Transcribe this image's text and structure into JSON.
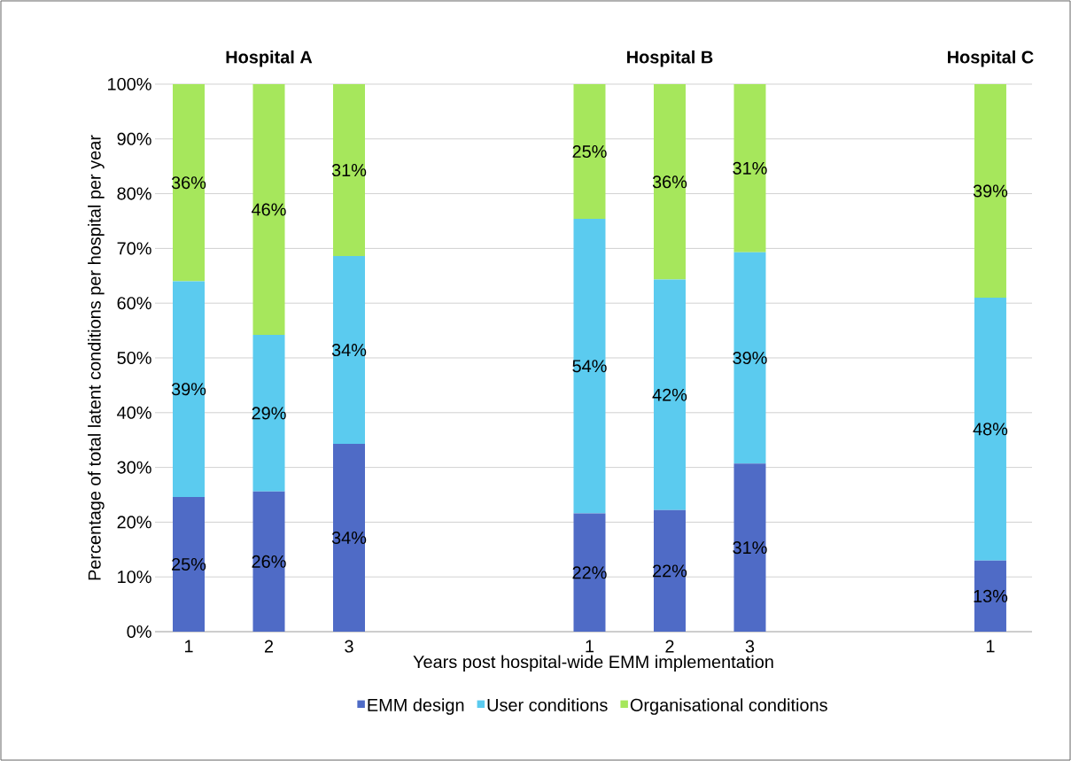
{
  "chart_data": {
    "type": "bar",
    "stacked": true,
    "xlabel": "Years post hospital-wide EMM implementation",
    "ylabel": "Percentage of total latent conditions per hospital per year",
    "categories": [
      "1",
      "2",
      "3",
      null,
      null,
      "1",
      "2",
      "3",
      null,
      null,
      "1"
    ],
    "series": [
      {
        "name": "EMM design",
        "color": "#4f6bc6",
        "values": [
          24.6,
          25.6,
          34.3,
          null,
          null,
          21.6,
          22.2,
          30.7,
          null,
          null,
          13.0
        ],
        "value_labels": [
          "25%",
          "26%",
          "34%",
          null,
          null,
          "22%",
          "22%",
          "31%",
          null,
          null,
          "13%"
        ]
      },
      {
        "name": "User conditions",
        "color": "#5bcbef",
        "values": [
          39.4,
          28.6,
          34.3,
          null,
          null,
          53.8,
          42.1,
          38.6,
          null,
          null,
          48.0
        ],
        "value_labels": [
          "39%",
          "29%",
          "34%",
          null,
          null,
          "54%",
          "42%",
          "39%",
          null,
          null,
          "48%"
        ]
      },
      {
        "name": "Organisational conditions",
        "color": "#a6e75c",
        "values": [
          36.0,
          45.8,
          31.4,
          null,
          null,
          24.6,
          35.7,
          30.7,
          null,
          null,
          39.0
        ],
        "value_labels": [
          "36%",
          "46%",
          "31%",
          null,
          null,
          "25%",
          "36%",
          "31%",
          null,
          null,
          "39%"
        ]
      }
    ],
    "ylim": [
      0,
      100
    ],
    "yticks": [
      {
        "value": 0,
        "label": "0%"
      },
      {
        "value": 10,
        "label": "10%"
      },
      {
        "value": 20,
        "label": "20%"
      },
      {
        "value": 30,
        "label": "30%"
      },
      {
        "value": 40,
        "label": "40%"
      },
      {
        "value": 50,
        "label": "50%"
      },
      {
        "value": 60,
        "label": "60%"
      },
      {
        "value": 70,
        "label": "70%"
      },
      {
        "value": 80,
        "label": "80%"
      },
      {
        "value": 90,
        "label": "90%"
      },
      {
        "value": 100,
        "label": "100%"
      }
    ],
    "annotations": [
      "Hospital A",
      "Hospital B",
      "Hospital C"
    ],
    "grid": "y",
    "legend": "bottom"
  }
}
